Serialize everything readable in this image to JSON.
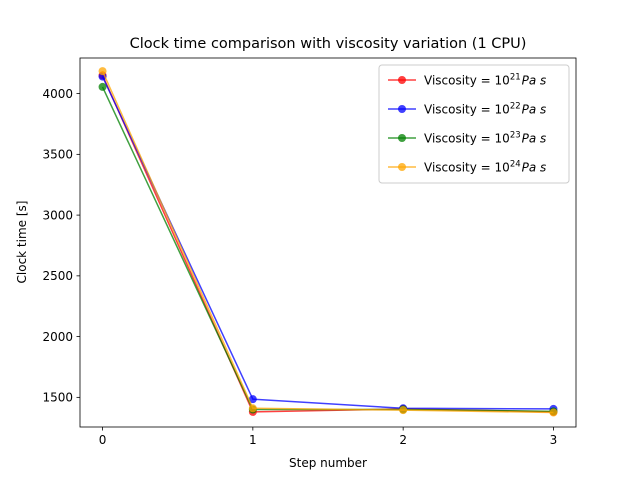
{
  "chart_data": {
    "type": "line",
    "title": "Clock time comparison with viscosity variation (1 CPU)",
    "xlabel": "Step number",
    "ylabel": "Clock time [s]",
    "x": [
      0,
      1,
      2,
      3
    ],
    "xticks": [
      "0",
      "1",
      "2",
      "3"
    ],
    "yticks": [
      1500,
      2000,
      2500,
      3000,
      3500,
      4000
    ],
    "xlim": [
      -0.15,
      3.15
    ],
    "ylim": [
      1256,
      4293
    ],
    "grid": false,
    "legend_position": "top-right",
    "series": [
      {
        "name": "Viscosity = 10",
        "exp": "21",
        "unit": "Pa s",
        "color": "#ff0000",
        "values": [
          4150,
          1380,
          1405,
          1380
        ]
      },
      {
        "name": "Viscosity = 10",
        "exp": "22",
        "unit": "Pa s",
        "color": "#0000ff",
        "values": [
          4140,
          1485,
          1410,
          1405
        ]
      },
      {
        "name": "Viscosity = 10",
        "exp": "23",
        "unit": "Pa s",
        "color": "#008000",
        "values": [
          4055,
          1400,
          1400,
          1385
        ]
      },
      {
        "name": "Viscosity = 10",
        "exp": "24",
        "unit": "Pa s",
        "color": "#ffa500",
        "values": [
          4185,
          1410,
          1395,
          1375
        ]
      }
    ]
  }
}
